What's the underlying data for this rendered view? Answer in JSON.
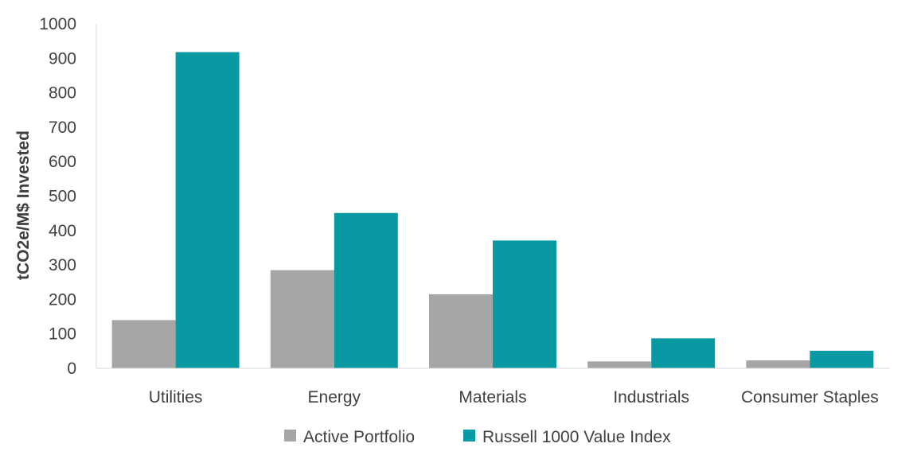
{
  "chart_data": {
    "type": "bar",
    "title": "",
    "xlabel": "",
    "ylabel": "tCO2e/M$ Invested",
    "ylim": [
      0,
      1000
    ],
    "yticks": [
      0,
      100,
      200,
      300,
      400,
      500,
      600,
      700,
      800,
      900,
      1000
    ],
    "categories": [
      "Utilities",
      "Energy",
      "Materials",
      "Industrials",
      "Consumer Staples"
    ],
    "series": [
      {
        "name": "Active Portfolio",
        "color": "#a6a6a6",
        "values": [
          140,
          285,
          215,
          20,
          23
        ]
      },
      {
        "name": "Russell 1000 Value Index",
        "color": "#0899a3",
        "values": [
          918,
          451,
          371,
          87,
          51
        ]
      }
    ],
    "grid": false,
    "legend": "bottom"
  }
}
